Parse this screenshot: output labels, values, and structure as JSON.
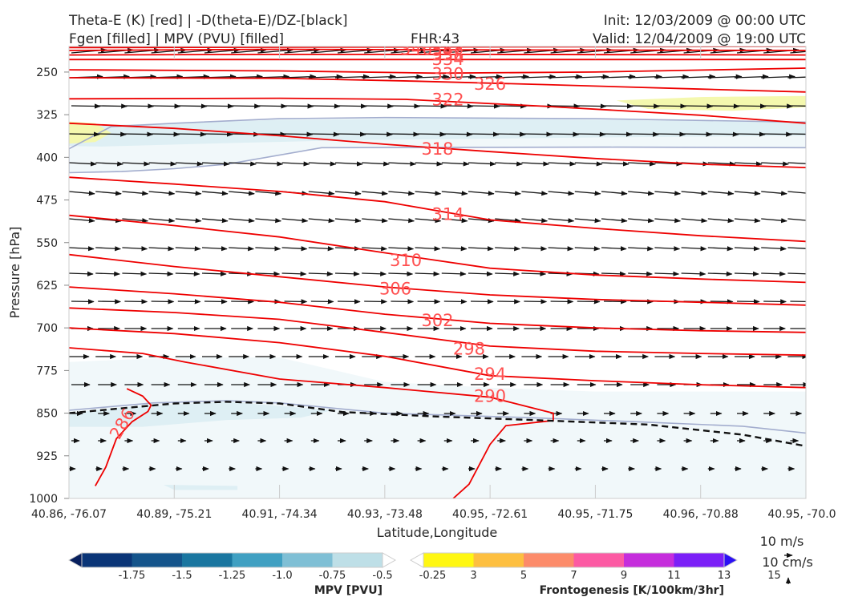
{
  "header": {
    "left_line1": "Theta-E (K) [red] | -D(theta-E)/DZ-[black]",
    "left_line2": "Fgen [filled] | MPV (PVU) [filled]",
    "fhr": "FHR:43",
    "init": "Init: 12/03/2009 @ 00:00 UTC",
    "valid": "Valid: 12/04/2009 @ 19:00 UTC"
  },
  "chart_data": {
    "type": "cross-section",
    "xlabel": "Latitude,Longitude",
    "ylabel": "Pressure [hPa]",
    "x_ticks": [
      "40.86, -76.07",
      "40.89, -75.21",
      "40.91, -74.34",
      "40.93, -73.48",
      "40.95, -72.61",
      "40.95, -71.75",
      "40.96, -70.88",
      "40.95, -70.0"
    ],
    "y_ticks": [
      250,
      325,
      400,
      475,
      550,
      625,
      700,
      775,
      850,
      925,
      1000
    ],
    "ylim": [
      1000,
      205
    ],
    "theta_e_contour_labels": [
      {
        "text": "346",
        "x": 3.3,
        "p": 208
      },
      {
        "text": "342",
        "x": 3.6,
        "p": 210
      },
      {
        "text": "338",
        "x": 3.6,
        "p": 218
      },
      {
        "text": "334",
        "x": 3.6,
        "p": 226
      },
      {
        "text": "330",
        "x": 3.6,
        "p": 252
      },
      {
        "text": "326",
        "x": 4.0,
        "p": 270
      },
      {
        "text": "322",
        "x": 3.6,
        "p": 297
      },
      {
        "text": "318",
        "x": 3.5,
        "p": 384
      },
      {
        "text": "314",
        "x": 3.6,
        "p": 499
      },
      {
        "text": "310",
        "x": 3.2,
        "p": 580
      },
      {
        "text": "306",
        "x": 3.1,
        "p": 630
      },
      {
        "text": "302",
        "x": 3.5,
        "p": 686
      },
      {
        "text": "298",
        "x": 3.8,
        "p": 736
      },
      {
        "text": "294",
        "x": 4.0,
        "p": 780
      },
      {
        "text": "290",
        "x": 4.0,
        "p": 819
      },
      {
        "text": "286",
        "x": 0.5,
        "p": 868
      }
    ],
    "theta_e_contours": [
      {
        "level": 346,
        "pts": [
          [
            0,
            207
          ],
          [
            3,
            206
          ],
          [
            7,
            205
          ]
        ]
      },
      {
        "level": 342,
        "pts": [
          [
            0,
            212
          ],
          [
            2,
            210
          ],
          [
            4,
            211
          ],
          [
            7,
            212
          ]
        ]
      },
      {
        "level": 338,
        "pts": [
          [
            0,
            220
          ],
          [
            2,
            219
          ],
          [
            4,
            219
          ],
          [
            7,
            220
          ]
        ]
      },
      {
        "level": 334,
        "pts": [
          [
            0,
            228
          ],
          [
            2,
            228
          ],
          [
            4,
            228
          ],
          [
            7,
            228
          ]
        ]
      },
      {
        "level": 330,
        "pts": [
          [
            0,
            246
          ],
          [
            2,
            248
          ],
          [
            3.5,
            252
          ],
          [
            5,
            250
          ],
          [
            7,
            243
          ]
        ]
      },
      {
        "level": 326,
        "pts": [
          [
            0,
            260
          ],
          [
            2,
            261
          ],
          [
            3.3,
            266
          ],
          [
            4.5,
            272
          ],
          [
            6,
            280
          ],
          [
            7,
            285
          ]
        ]
      },
      {
        "level": 322,
        "pts": [
          [
            0,
            297
          ],
          [
            2,
            296
          ],
          [
            3.2,
            298
          ],
          [
            4.5,
            310
          ],
          [
            6,
            326
          ],
          [
            7,
            340
          ]
        ]
      },
      {
        "level": 318,
        "pts": [
          [
            0,
            340
          ],
          [
            1,
            349
          ],
          [
            2,
            362
          ],
          [
            3,
            377
          ],
          [
            4,
            390
          ],
          [
            5,
            402
          ],
          [
            6,
            412
          ],
          [
            7,
            418
          ]
        ]
      },
      {
        "level": 314,
        "pts": [
          [
            0,
            435
          ],
          [
            1,
            447
          ],
          [
            2,
            460
          ],
          [
            3,
            478
          ],
          [
            4,
            510
          ],
          [
            5,
            525
          ],
          [
            6,
            538
          ],
          [
            7,
            548
          ]
        ]
      },
      {
        "level": 310,
        "pts": [
          [
            0,
            502
          ],
          [
            1,
            520
          ],
          [
            2,
            540
          ],
          [
            3,
            568
          ],
          [
            4,
            595
          ],
          [
            5,
            607
          ],
          [
            6,
            614
          ],
          [
            7,
            620
          ]
        ]
      },
      {
        "level": 306,
        "pts": [
          [
            0,
            571
          ],
          [
            1,
            592
          ],
          [
            2,
            610
          ],
          [
            3,
            628
          ],
          [
            4,
            642
          ],
          [
            5,
            650
          ],
          [
            6,
            655
          ],
          [
            7,
            660
          ]
        ]
      },
      {
        "level": 302,
        "pts": [
          [
            0,
            628
          ],
          [
            1,
            640
          ],
          [
            2,
            655
          ],
          [
            3,
            676
          ],
          [
            4,
            692
          ],
          [
            5,
            700
          ],
          [
            6,
            705
          ],
          [
            7,
            708
          ]
        ]
      },
      {
        "level": 298,
        "pts": [
          [
            0,
            665
          ],
          [
            1,
            673
          ],
          [
            2,
            685
          ],
          [
            3,
            708
          ],
          [
            4,
            732
          ],
          [
            5,
            741
          ],
          [
            6,
            745
          ],
          [
            7,
            748
          ]
        ]
      },
      {
        "level": 294,
        "pts": [
          [
            0,
            700
          ],
          [
            1,
            710
          ],
          [
            2,
            726
          ],
          [
            3,
            750
          ],
          [
            4,
            784
          ],
          [
            5,
            793
          ],
          [
            6,
            800
          ],
          [
            7,
            805
          ]
        ]
      },
      {
        "level": 290,
        "pts": [
          [
            0,
            735
          ],
          [
            0.7,
            745
          ],
          [
            1.1,
            760
          ],
          [
            2,
            790
          ],
          [
            3,
            805
          ],
          [
            4,
            822
          ],
          [
            4.6,
            850
          ],
          [
            4.6,
            863
          ],
          [
            4.15,
            872
          ],
          [
            4.0,
            905
          ],
          [
            3.8,
            975
          ],
          [
            3.65,
            1000
          ]
        ]
      },
      {
        "level": 286,
        "pts": [
          [
            0.25,
            978
          ],
          [
            0.35,
            945
          ],
          [
            0.45,
            895
          ],
          [
            0.6,
            865
          ],
          [
            0.75,
            847
          ],
          [
            0.78,
            836
          ],
          [
            0.7,
            820
          ],
          [
            0.55,
            807
          ]
        ]
      }
    ],
    "stability_boundary": [
      [
        0,
        850
      ],
      [
        1,
        833
      ],
      [
        1.5,
        830
      ],
      [
        2,
        833
      ],
      [
        2.6,
        848
      ],
      [
        3.5,
        856
      ],
      [
        4.4,
        862
      ],
      [
        5.5,
        870
      ],
      [
        6.4,
        888
      ],
      [
        7,
        908
      ]
    ],
    "mpv_outline": [
      [
        0,
        385
      ],
      [
        0.4,
        346
      ],
      [
        1,
        340
      ],
      [
        2,
        332
      ],
      [
        3,
        330
      ],
      [
        5,
        332
      ],
      [
        7,
        338
      ],
      [
        7,
        383
      ],
      [
        5.2,
        382
      ],
      [
        2.4,
        383
      ],
      [
        1.5,
        412
      ],
      [
        1.0,
        420
      ],
      [
        0.5,
        425
      ],
      [
        0,
        427
      ]
    ],
    "fgen_fill": [
      {
        "level": 3,
        "region": "upper-right, upper-left"
      }
    ],
    "wind_scale": {
      "label1": "10 m/s",
      "label2": "10 cm/s"
    },
    "colorbars": [
      {
        "label": "MPV [PVU]",
        "ticks": [
          "-1.75",
          "-1.5",
          "-1.25",
          "-1.0",
          "-0.75",
          "-0.5",
          "-0.25"
        ],
        "colors": [
          "#08205e",
          "#0a3577",
          "#14548b",
          "#1a76a0",
          "#40a0c2",
          "#7fbfd5",
          "#bedfe7",
          "#ffffff"
        ]
      },
      {
        "label": "Frontogenesis [K/100km/3hr]",
        "ticks": [
          "3",
          "5",
          "7",
          "9",
          "11",
          "13",
          "15"
        ],
        "colors": [
          "#ffffff",
          "#fff712",
          "#fdbf40",
          "#fc8b6a",
          "#fc5aa3",
          "#c52ddc",
          "#7b1ff7",
          "#2c10f5"
        ]
      }
    ],
    "grid": false,
    "contour_color": "#ee0000",
    "label_color": "#ff5050",
    "arrow_color": "#111111"
  }
}
